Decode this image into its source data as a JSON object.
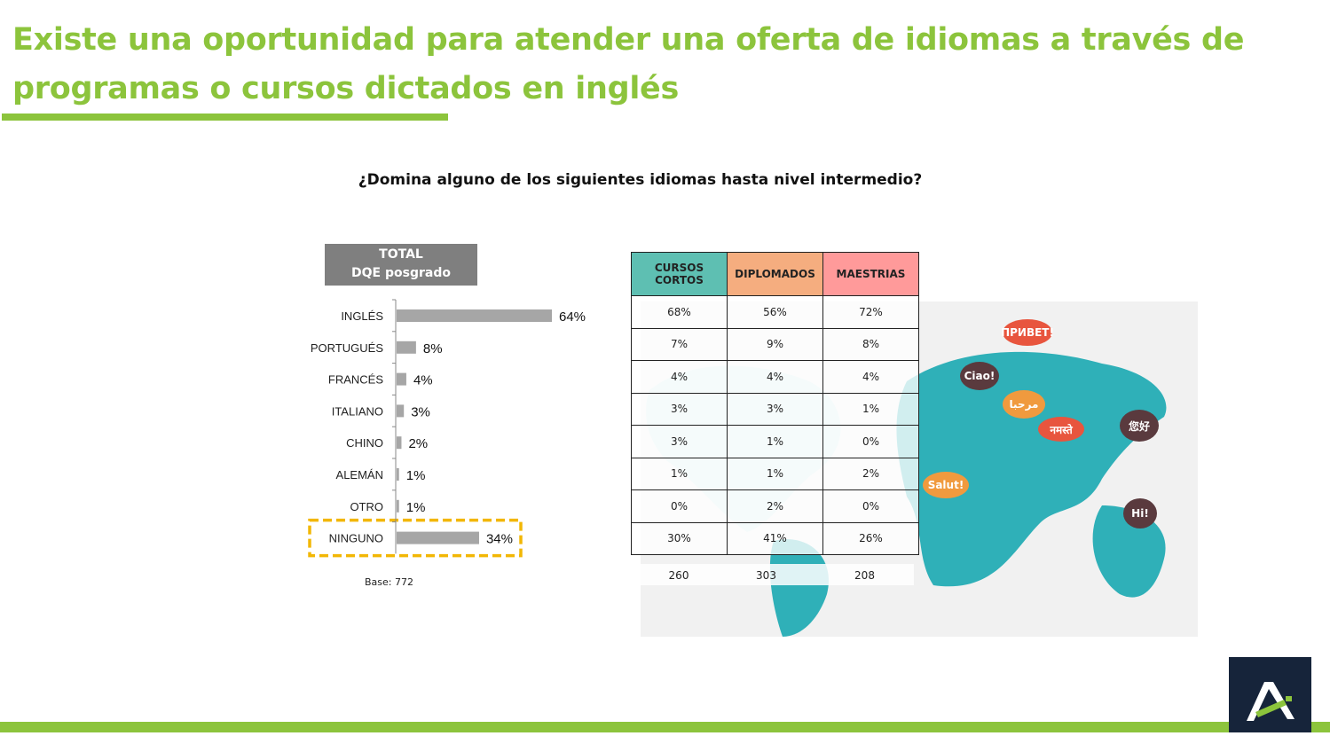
{
  "title": "Existe una oportunidad para atender una oferta de idiomas a través de programas o cursos dictados en inglés",
  "question": "¿Domina alguno de los siguientes idiomas hasta nivel intermedio?",
  "total_box": {
    "line1": "TOTAL",
    "line2": "DQE posgrado"
  },
  "base_note": "Base: 772",
  "colors": {
    "accent": "#8cc43c",
    "bar": "#a6a6a6",
    "highlight": "#f2b705",
    "cursos": "#5ebfb2",
    "diplomados": "#f5ad7f",
    "maestrias": "#ff9a9a",
    "logo_bg": "#16243a"
  },
  "chart_data": {
    "type": "bar",
    "orientation": "horizontal",
    "categories": [
      "INGLÉS",
      "PORTUGUÉS",
      "FRANCÉS",
      "ITALIANO",
      "CHINO",
      "ALEMÁN",
      "OTRO",
      "NINGUNO"
    ],
    "values": [
      64,
      8,
      4,
      3,
      2,
      1,
      1,
      34
    ],
    "value_labels": [
      "64%",
      "8%",
      "4%",
      "3%",
      "2%",
      "1%",
      "1%",
      "34%"
    ],
    "highlighted_category": "NINGUNO",
    "xlim": [
      0,
      70
    ],
    "grid": false
  },
  "table": {
    "headers": [
      "CURSOS CORTOS",
      "DIPLOMADOS",
      "MAESTRIAS"
    ],
    "rows": [
      [
        "68%",
        "56%",
        "72%"
      ],
      [
        "7%",
        "9%",
        "8%"
      ],
      [
        "4%",
        "4%",
        "4%"
      ],
      [
        "3%",
        "3%",
        "1%"
      ],
      [
        "3%",
        "1%",
        "0%"
      ],
      [
        "1%",
        "1%",
        "2%"
      ],
      [
        "0%",
        "2%",
        "0%"
      ],
      [
        "30%",
        "41%",
        "26%"
      ]
    ],
    "bases": [
      "260",
      "303",
      "208"
    ]
  },
  "illustration": {
    "bubbles": [
      {
        "text": "ПРИВЕТ!",
        "color": "#e8553e"
      },
      {
        "text": "Ciao!",
        "color": "#5a3a3e"
      },
      {
        "text": "مرحبا",
        "color": "#f09a3e"
      },
      {
        "text": "नमस्ते",
        "color": "#e8553e"
      },
      {
        "text": "您好",
        "color": "#5a3a3e"
      },
      {
        "text": "Salut!",
        "color": "#f09a3e"
      },
      {
        "text": "Hi!",
        "color": "#5a3a3e"
      }
    ]
  }
}
